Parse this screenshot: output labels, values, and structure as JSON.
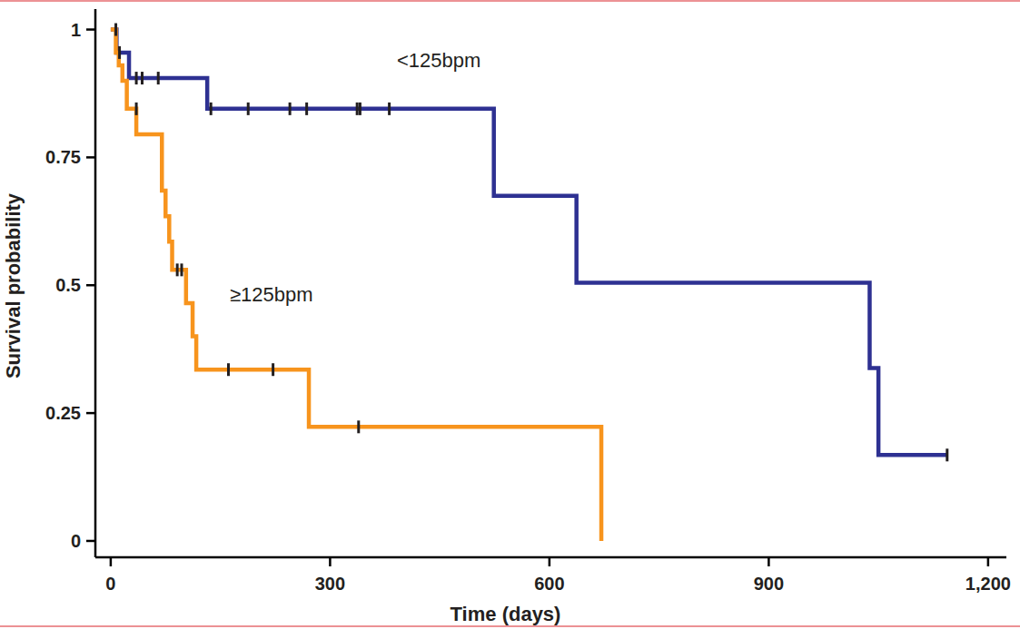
{
  "chart_data": {
    "type": "step",
    "x_label": "Time (days)",
    "y_label": "Survival probability",
    "xlim": [
      -21,
      1225
    ],
    "ylim": [
      -0.032,
      1.04
    ],
    "xticks": [
      0,
      300,
      600,
      900,
      {
        "value": 1200,
        "label": "1,200"
      }
    ],
    "yticks": [
      0,
      0.25,
      0.5,
      0.75,
      1
    ],
    "series": [
      {
        "name": "<125bpm",
        "color": "#2e3192",
        "x": [
          0,
          8,
          25,
          132,
          524,
          637,
          1038,
          1050
        ],
        "values": [
          1,
          0.955,
          0.905,
          0.845,
          0.675,
          0.505,
          0.338,
          0.168
        ],
        "censored": {
          "x": [
            7,
            12,
            35,
            43,
            65,
            137,
            188,
            245,
            268,
            337,
            341,
            381,
            1144
          ],
          "values": [
            1,
            0.955,
            0.905,
            0.905,
            0.905,
            0.845,
            0.845,
            0.845,
            0.845,
            0.845,
            0.845,
            0.845,
            0.168
          ]
        }
      },
      {
        "name": "≥125bpm",
        "color": "#f7941d",
        "x": [
          0,
          7,
          11,
          16,
          22,
          35,
          70,
          75,
          80,
          84,
          103,
          112,
          117,
          271,
          671
        ],
        "values": [
          1,
          0.955,
          0.93,
          0.9,
          0.845,
          0.795,
          0.685,
          0.635,
          0.585,
          0.53,
          0.465,
          0.4,
          0.335,
          0.223,
          0
        ],
        "censored": {
          "x": [
            35,
            91,
            97,
            161,
            222,
            339
          ],
          "values": [
            0.845,
            0.53,
            0.53,
            0.335,
            0.335,
            0.223
          ]
        }
      }
    ]
  }
}
